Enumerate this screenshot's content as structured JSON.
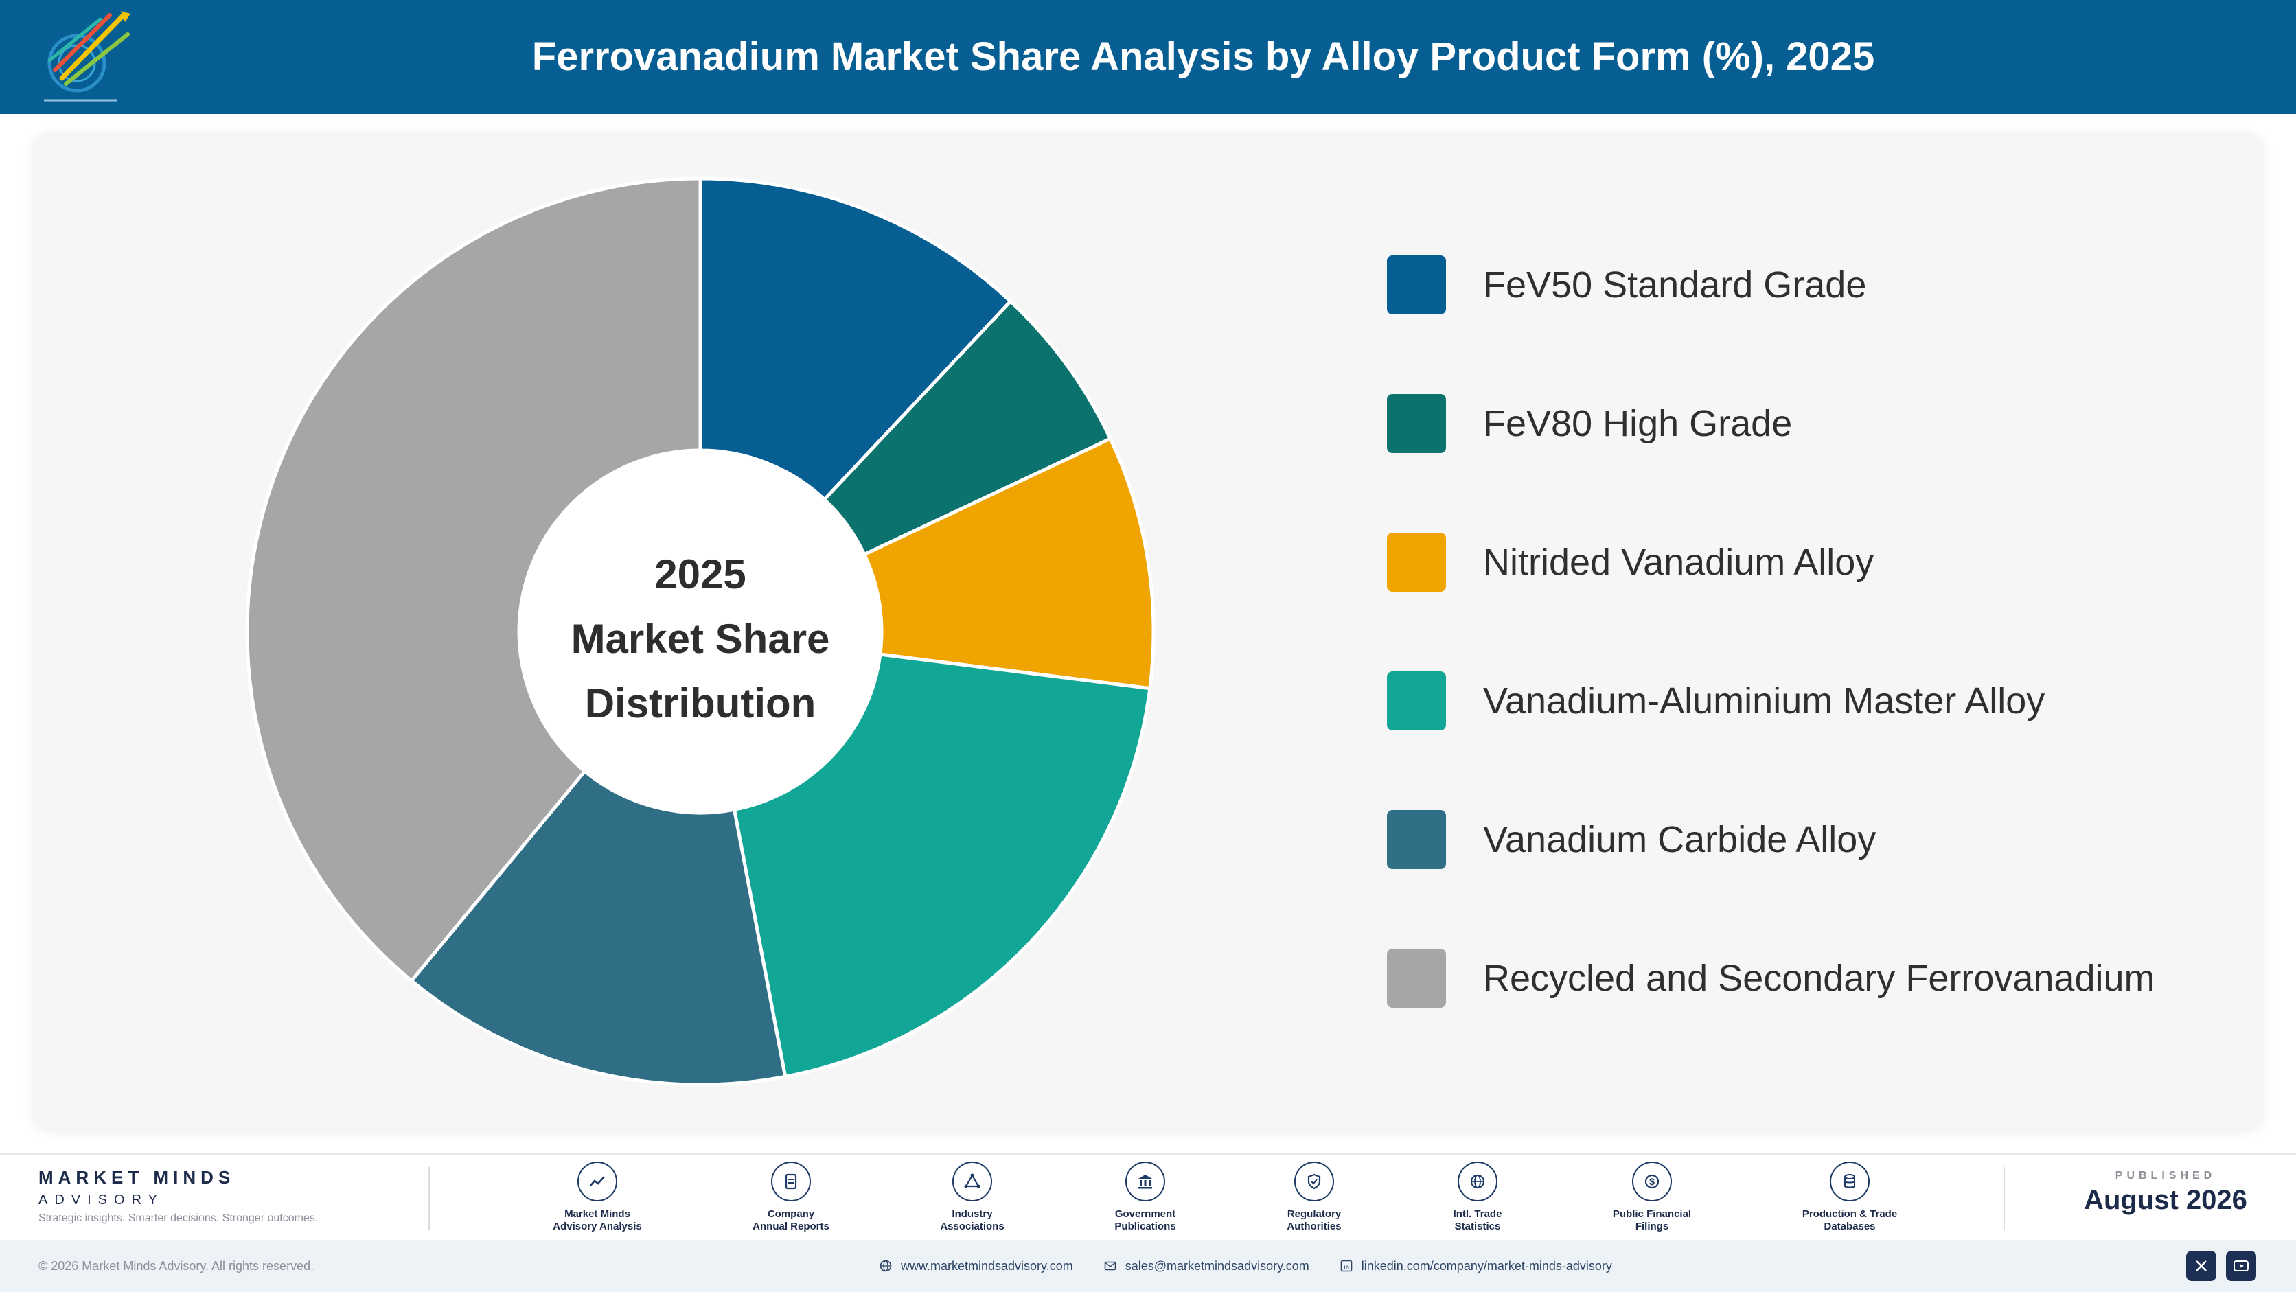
{
  "header": {
    "title": "Ferrovanadium Market Share Analysis by Alloy Product Form (%), 2025",
    "logo_icon": "arrows-target-logo"
  },
  "chart_data": {
    "type": "pie",
    "title": "Ferrovanadium Market Share Analysis by Alloy Product Form (%), 2025",
    "center_label": [
      "2025",
      "Market Share",
      "Distribution"
    ],
    "donut": true,
    "legend_position": "right",
    "series": [
      {
        "name": "FeV50 Standard Grade",
        "value": 12,
        "color": "#065e92"
      },
      {
        "name": "FeV80 High Grade",
        "value": 6,
        "color": "#0c726d"
      },
      {
        "name": "Nitrided Vanadium Alloy",
        "value": 9,
        "color": "#f0a400"
      },
      {
        "name": "Vanadium-Aluminium Master Alloy",
        "value": 20,
        "color": "#12a697"
      },
      {
        "name": "Vanadium Carbide Alloy",
        "value": 14,
        "color": "#306e85"
      },
      {
        "name": "Recycled and Secondary Ferrovanadium",
        "value": 39,
        "color": "#a6a6a6"
      }
    ]
  },
  "footer": {
    "brand_name": "MARKET MINDS",
    "brand_sub": "ADVISORY",
    "brand_tag": "Strategic insights. Smarter decisions. Stronger outcomes.",
    "sources": [
      {
        "line1": "Market Minds",
        "line2": "Advisory Analysis",
        "icon": "trend-line-icon"
      },
      {
        "line1": "Company",
        "line2": "Annual Reports",
        "icon": "document-icon"
      },
      {
        "line1": "Industry",
        "line2": "Associations",
        "icon": "network-icon"
      },
      {
        "line1": "Government",
        "line2": "Publications",
        "icon": "government-building-icon"
      },
      {
        "line1": "Regulatory",
        "line2": "Authorities",
        "icon": "shield-check-icon"
      },
      {
        "line1": "Intl. Trade",
        "line2": "Statistics",
        "icon": "globe-icon"
      },
      {
        "line1": "Public Financial",
        "line2": "Filings",
        "icon": "dollar-coin-icon"
      },
      {
        "line1": "Production & Trade",
        "line2": "Databases",
        "icon": "database-icon"
      }
    ],
    "published_label": "PUBLISHED",
    "published_date": "August 2026"
  },
  "bottombar": {
    "copyright": "© 2026 Market Minds Advisory. All rights reserved.",
    "website": "www.marketmindsadvisory.com",
    "email": "sales@marketmindsadvisory.com",
    "linkedin": "linkedin.com/company/market-minds-advisory"
  }
}
